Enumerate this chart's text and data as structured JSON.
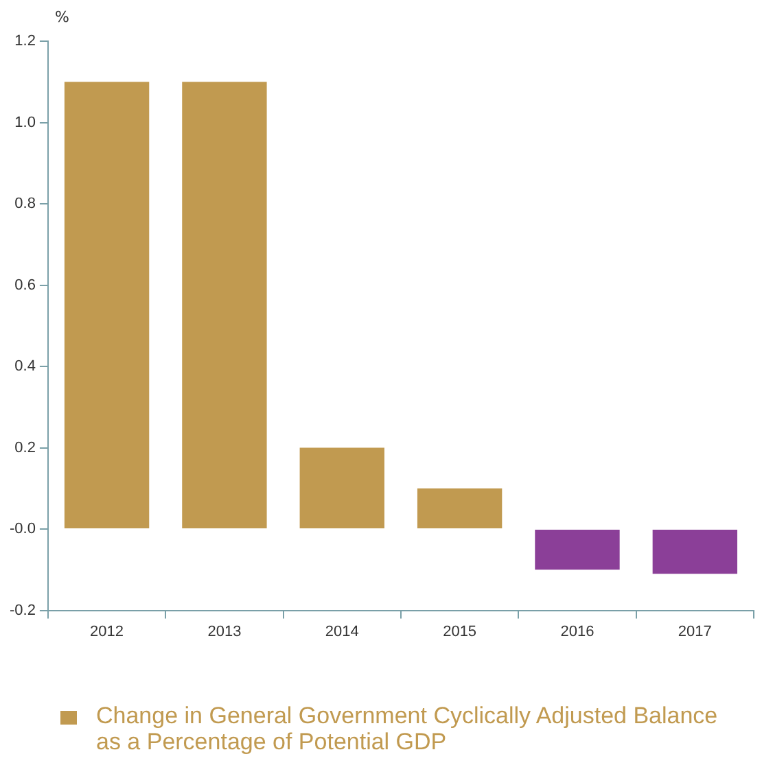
{
  "chart_data": {
    "type": "bar",
    "ylabel": "%",
    "categories": [
      "2012",
      "2013",
      "2014",
      "2015",
      "2016",
      "2017"
    ],
    "series": [
      {
        "name": "Change in General Government Cyclically Adjusted Balance as a Percentage of Potential GDP",
        "color": "#c19a50",
        "colors": [
          "#c19a50",
          "#c19a50",
          "#c19a50",
          "#c19a50",
          "#8b3f98",
          "#8b3f98"
        ],
        "values": [
          1.1,
          1.1,
          0.2,
          0.1,
          -0.1,
          -0.11
        ]
      }
    ],
    "ylim": [
      -0.2,
      1.2
    ],
    "yticks": [
      {
        "value": -0.2,
        "label": "-0.2"
      },
      {
        "value": 0,
        "label": "-0.0"
      },
      {
        "value": 0.2,
        "label": "0.2"
      },
      {
        "value": 0.4,
        "label": "0.4"
      },
      {
        "value": 0.6,
        "label": "0.6"
      },
      {
        "value": 0.8,
        "label": "0.8"
      },
      {
        "value": 1,
        "label": "1.0"
      },
      {
        "value": 1.2,
        "label": "1.2"
      }
    ],
    "grid": false,
    "legend": "bottom"
  }
}
